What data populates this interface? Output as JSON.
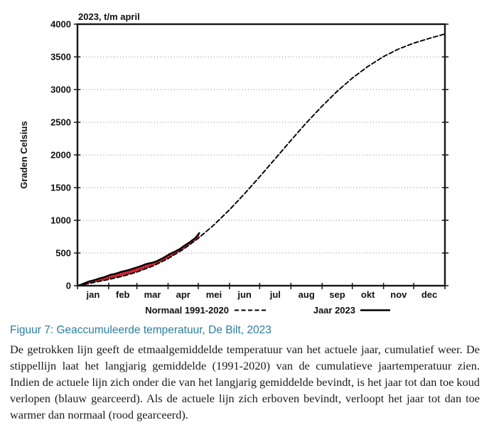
{
  "colors": {
    "caption": "#2a7f9f",
    "line": "#000000",
    "fill_red": "#e8303f",
    "fill_stripe": "#8c1220",
    "grid": "#8a8a8a",
    "frame": "#161616"
  },
  "chart_data": {
    "type": "line",
    "title": "2023, t/m april",
    "ylabel": "Graden Celsius",
    "ylim": [
      0,
      4000
    ],
    "yticks": [
      0,
      500,
      1000,
      1500,
      2000,
      2500,
      3000,
      3500,
      4000
    ],
    "xlim": [
      0,
      365
    ],
    "x_unit": "dag van het jaar",
    "month_labels": [
      "jan",
      "feb",
      "mar",
      "apr",
      "mei",
      "jun",
      "jul",
      "aug",
      "sep",
      "okt",
      "nov",
      "dec"
    ],
    "month_boundaries_days": [
      0,
      31,
      59,
      90,
      120,
      151,
      181,
      212,
      243,
      273,
      304,
      334,
      365
    ],
    "grid": {
      "horizontal_dotted_at": [
        500,
        1000,
        1500,
        2000,
        2500,
        3000,
        3500
      ]
    },
    "legend": {
      "position": "below-chart",
      "items": [
        {
          "label": "Normaal 1991-2020",
          "line_style": "dashed"
        },
        {
          "label": "Jaar 2023",
          "line_style": "solid"
        }
      ]
    },
    "series": [
      {
        "name": "Normaal 1991-2020",
        "style": "dashed",
        "color": "#000000",
        "points": [
          [
            0,
            0
          ],
          [
            15,
            46
          ],
          [
            31,
            96
          ],
          [
            46,
            150
          ],
          [
            59,
            209
          ],
          [
            75,
            302
          ],
          [
            90,
            415
          ],
          [
            105,
            556
          ],
          [
            120,
            725
          ],
          [
            135,
            922
          ],
          [
            151,
            1161
          ],
          [
            166,
            1407
          ],
          [
            181,
            1667
          ],
          [
            196,
            1935
          ],
          [
            212,
            2222
          ],
          [
            227,
            2485
          ],
          [
            243,
            2747
          ],
          [
            258,
            2974
          ],
          [
            273,
            3175
          ],
          [
            288,
            3348
          ],
          [
            304,
            3505
          ],
          [
            319,
            3620
          ],
          [
            334,
            3710
          ],
          [
            349,
            3780
          ],
          [
            365,
            3850
          ]
        ]
      },
      {
        "name": "Jaar 2023",
        "style": "solid",
        "color": "#000000",
        "points": [
          [
            0,
            0
          ],
          [
            4,
            18
          ],
          [
            7,
            38
          ],
          [
            10,
            58
          ],
          [
            13,
            72
          ],
          [
            16,
            82
          ],
          [
            19,
            96
          ],
          [
            22,
            112
          ],
          [
            25,
            124
          ],
          [
            28,
            138
          ],
          [
            31,
            158
          ],
          [
            34,
            172
          ],
          [
            37,
            180
          ],
          [
            40,
            194
          ],
          [
            43,
            210
          ],
          [
            46,
            222
          ],
          [
            49,
            232
          ],
          [
            52,
            246
          ],
          [
            55,
            260
          ],
          [
            59,
            280
          ],
          [
            62,
            295
          ],
          [
            65,
            312
          ],
          [
            68,
            330
          ],
          [
            71,
            342
          ],
          [
            74,
            352
          ],
          [
            77,
            365
          ],
          [
            80,
            385
          ],
          [
            83,
            408
          ],
          [
            86,
            432
          ],
          [
            90,
            470
          ],
          [
            93,
            495
          ],
          [
            96,
            515
          ],
          [
            99,
            540
          ],
          [
            102,
            565
          ],
          [
            105,
            600
          ],
          [
            108,
            630
          ],
          [
            111,
            660
          ],
          [
            114,
            695
          ],
          [
            117,
            730
          ],
          [
            121,
            805
          ]
        ]
      }
    ],
    "fill_between": {
      "upper": "Jaar 2023",
      "lower": "Normaal 1991-2020",
      "color": "#e8303f",
      "hatch": "vertical",
      "meaning": "rood gearceerd: jaar tot dan toe warmer dan normaal"
    }
  },
  "figure": {
    "caption": "Figuur 7: Geaccumuleerde temperatuur, De Bilt, 2023",
    "description": "De getrokken lijn geeft de etmaalgemiddelde temperatuur van het actuele jaar, cumulatief weer. De stippellijn laat het langjarig gemiddelde (1991-2020) van de cumulatieve jaartemperatuur zien. Indien de actuele lijn zich onder die van het langjarig gemiddelde bevindt, is het jaar tot dan toe koud verlopen (blauw gearceerd). Als de actuele lijn zich erboven bevindt, verloopt het jaar tot dan toe warmer dan normaal (rood gearceerd)."
  }
}
